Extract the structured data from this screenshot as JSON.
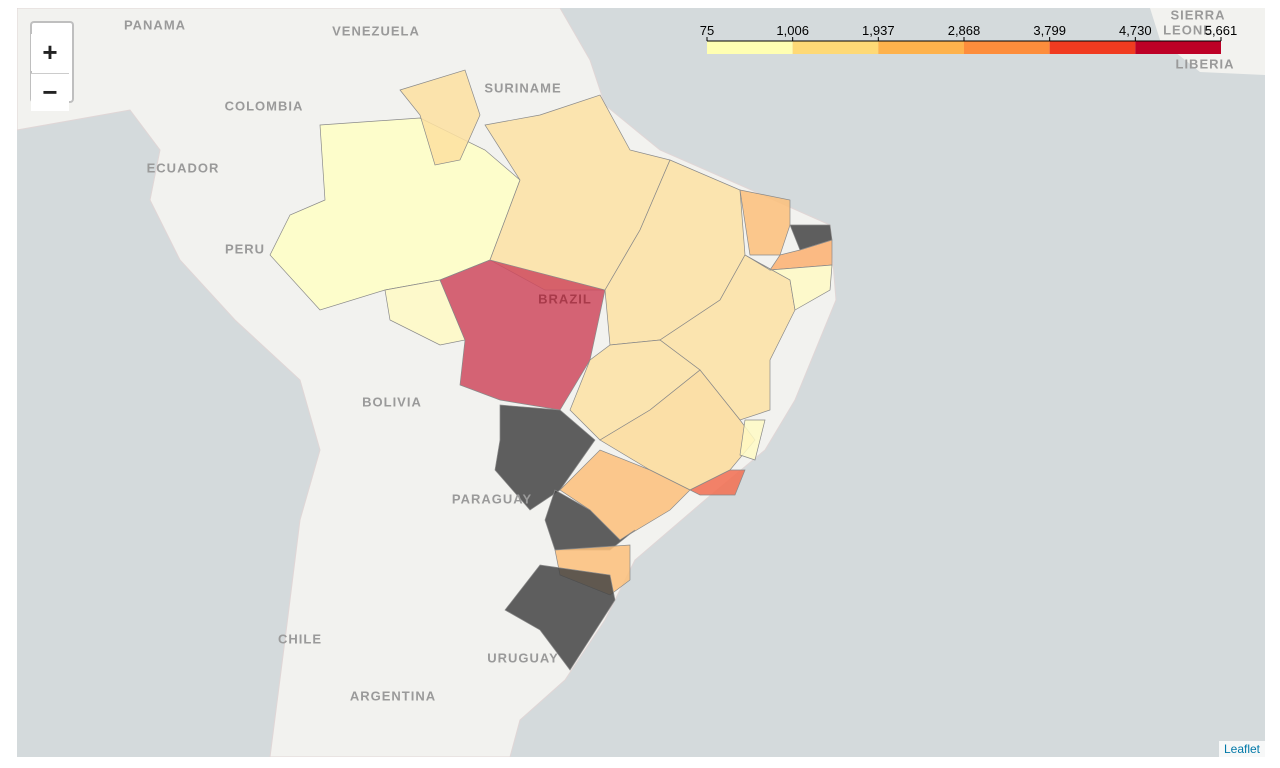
{
  "map": {
    "controls": {
      "zoom_in": "+",
      "zoom_out": "−"
    },
    "legend": {
      "ticks": [
        75,
        {
          "value": 1006,
          "label": "1,006"
        },
        {
          "value": 1937,
          "label": "1,937"
        },
        {
          "value": 2868,
          "label": "2,868"
        },
        {
          "value": 3799,
          "label": "3,799"
        },
        {
          "value": 4730,
          "label": "4,730"
        },
        {
          "value": 5661,
          "label": "5,661"
        }
      ],
      "colors": [
        "#ffffb2",
        "#fed976",
        "#feb24c",
        "#fd8d3c",
        "#f03b20",
        "#bd0026"
      ]
    },
    "labels": {
      "panama": "PANAMA",
      "venezuela": "VENEZUELA",
      "suriname": "SURINAME",
      "colombia": "COLOMBIA",
      "ecuador": "ECUADOR",
      "peru": "PERU",
      "brazil": "BRAZIL",
      "bolivia": "BOLIVIA",
      "paraguay": "PARAGUAY",
      "chile": "CHILE",
      "uruguay": "URUGUAY",
      "argentina": "ARGENTINA",
      "sierra": "SIERRA",
      "leone": "LEONE",
      "liberia": "LIBERIA"
    },
    "attribution": "Leaflet"
  }
}
